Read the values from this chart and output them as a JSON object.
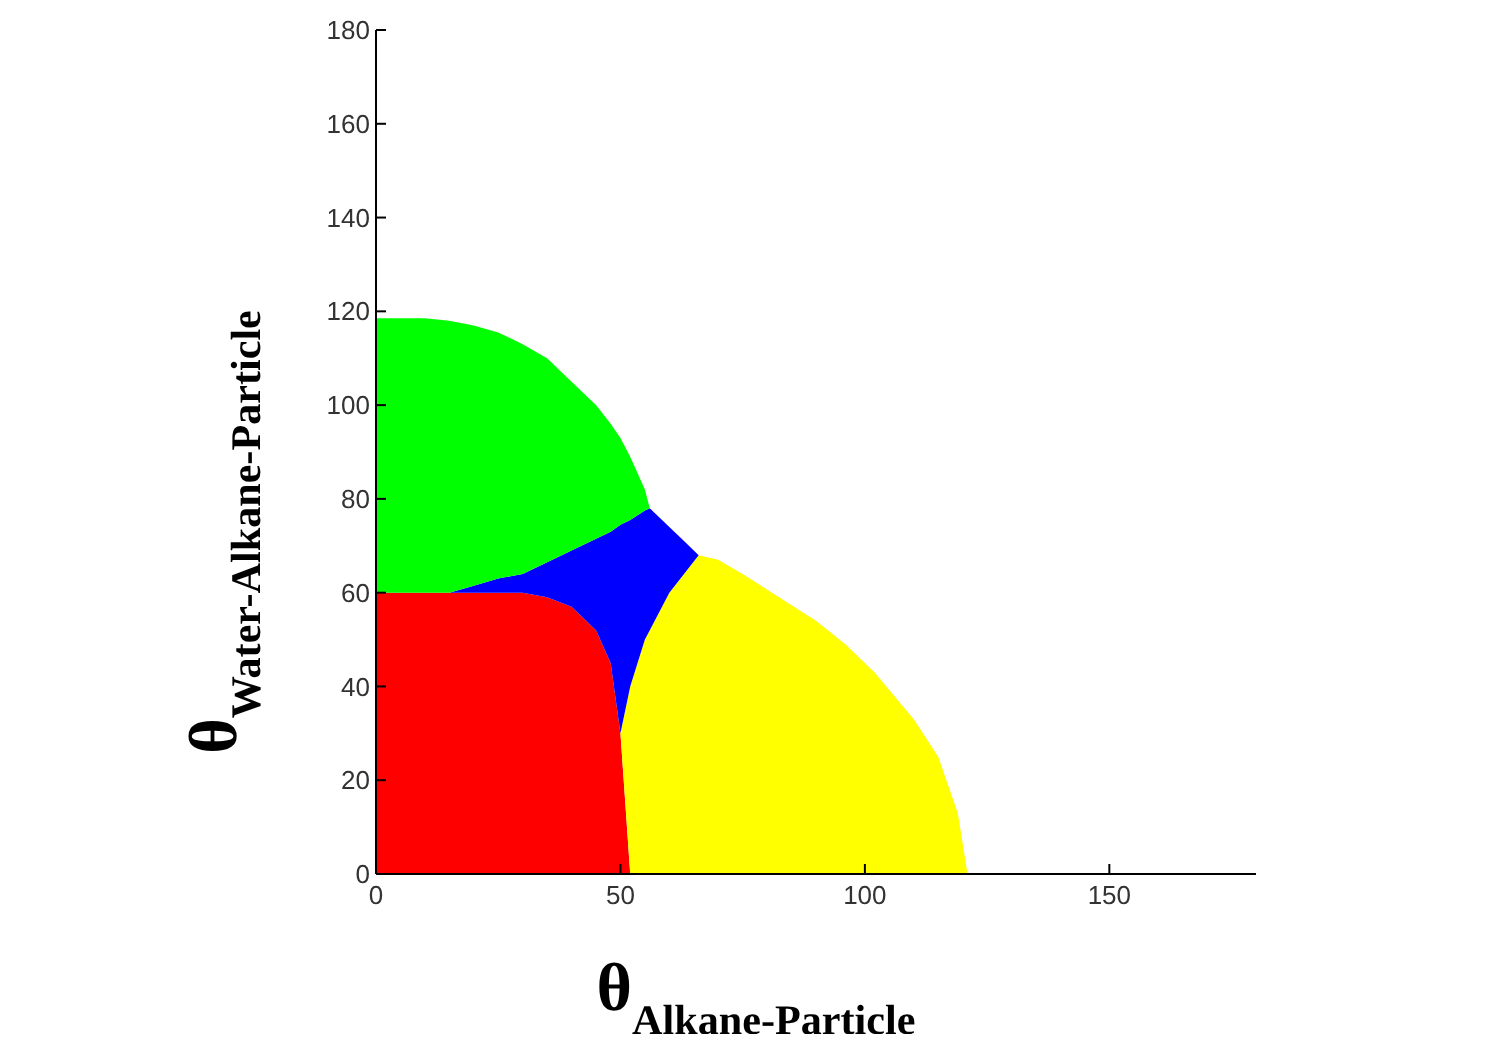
{
  "chart_data": {
    "type": "area",
    "stacked": true,
    "xlabel": "θ$_{Alkane-Particle}$",
    "ylabel": "θ$_{Water-Alkane-Particle}$",
    "x": [
      0,
      5,
      10,
      15,
      20,
      25,
      30,
      35,
      40,
      45,
      48,
      50,
      52,
      55,
      56,
      60,
      63,
      66,
      70,
      75,
      81,
      90,
      96,
      102,
      110,
      115,
      119,
      121
    ],
    "series": [
      {
        "color": "#ff0000",
        "values": [
          60,
          60,
          60,
          60,
          60,
          60,
          60,
          59,
          57,
          52,
          45,
          30,
          0,
          null,
          null,
          null,
          null,
          null,
          null,
          null,
          null,
          null,
          null,
          null,
          null,
          null,
          null,
          null
        ]
      },
      {
        "color": "#ffff00",
        "values": [
          null,
          null,
          null,
          null,
          null,
          null,
          null,
          null,
          null,
          null,
          null,
          0,
          40,
          50,
          52,
          60,
          64,
          68,
          67,
          64,
          60,
          54,
          49,
          43,
          33,
          25,
          13,
          0
        ]
      },
      {
        "color": "#0000ff",
        "values": [
          null,
          null,
          null,
          0,
          1.5,
          3,
          4,
          7.5,
          12,
          19.5,
          28,
          44.5,
          35.5,
          27.5,
          26,
          14,
          7,
          0,
          null,
          null,
          null,
          null,
          null,
          null,
          null,
          null,
          null,
          null
        ]
      },
      {
        "color": "#00ff00",
        "values": [
          58.5,
          58.5,
          58.5,
          58,
          55.5,
          52.5,
          49,
          43.5,
          36,
          28.5,
          23,
          18.5,
          13.5,
          4.5,
          0,
          null,
          null,
          null,
          null,
          null,
          null,
          null,
          null,
          null,
          null,
          null,
          null,
          null
        ]
      }
    ],
    "xlim": [
      0,
      180
    ],
    "xticks": [
      0,
      50,
      100,
      150
    ],
    "ylim": [
      0,
      180
    ],
    "yticks": [
      0,
      20,
      40,
      60,
      80,
      100,
      120,
      140,
      160,
      180
    ]
  }
}
